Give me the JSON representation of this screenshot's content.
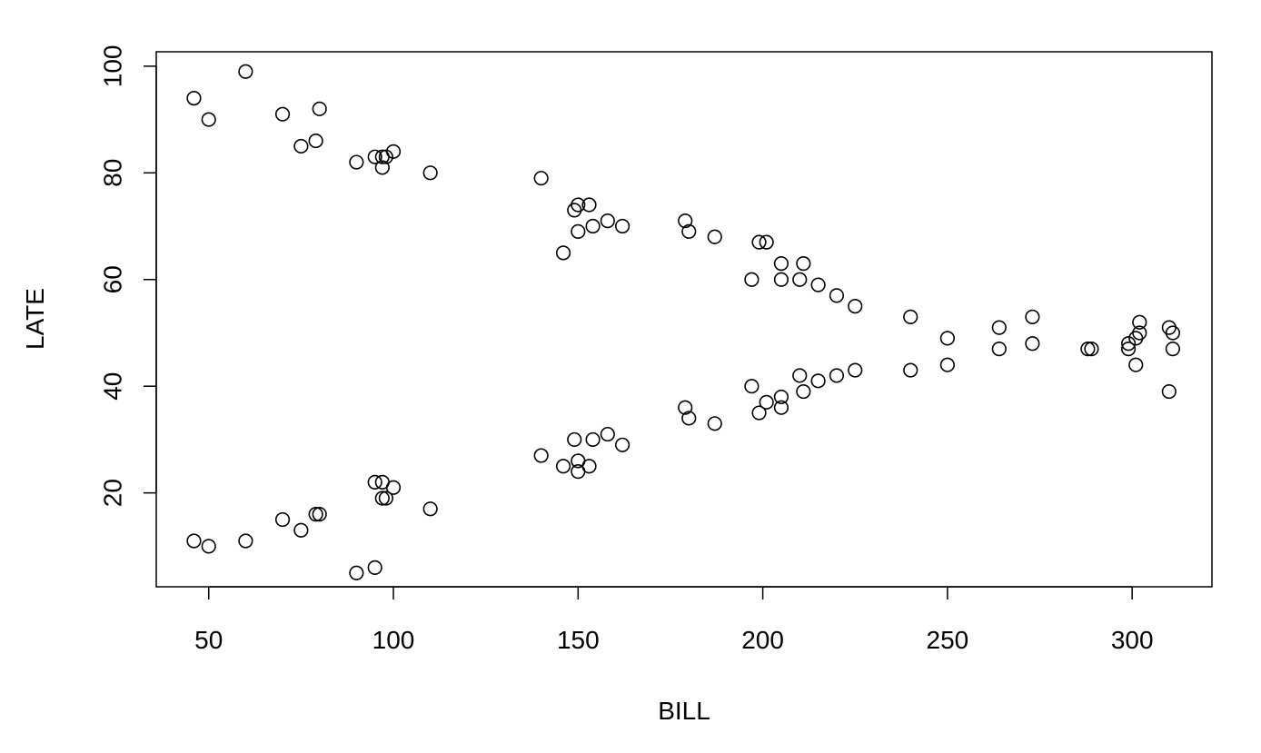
{
  "chart_data": {
    "type": "scatter",
    "title": "",
    "xlabel": "BILL",
    "ylabel": "LATE",
    "xlim": [
      35.8,
      321.6
    ],
    "ylim": [
      2.4,
      102.7
    ],
    "grid": false,
    "legend": "none",
    "x_ticks": [
      50,
      100,
      150,
      200,
      250,
      300
    ],
    "y_ticks": [
      20,
      40,
      60,
      80,
      100
    ],
    "x_tick_labels": [
      "50",
      "100",
      "150",
      "200",
      "250",
      "300"
    ],
    "y_tick_labels": [
      "20",
      "40",
      "60",
      "80",
      "100"
    ],
    "colors": {
      "point_stroke": "#000000",
      "axis": "#000000",
      "background": "#ffffff"
    },
    "series": [
      {
        "marker": "open-circle",
        "points": [
          [
            46,
            94
          ],
          [
            50,
            90
          ],
          [
            60,
            99
          ],
          [
            70,
            91
          ],
          [
            75,
            85
          ],
          [
            79,
            86
          ],
          [
            80,
            92
          ],
          [
            90,
            82
          ],
          [
            95,
            83
          ],
          [
            97,
            81
          ],
          [
            97,
            83
          ],
          [
            98,
            83
          ],
          [
            100,
            84
          ],
          [
            110,
            80
          ],
          [
            140,
            79
          ],
          [
            146,
            65
          ],
          [
            149,
            73
          ],
          [
            150,
            74
          ],
          [
            150,
            69
          ],
          [
            153,
            74
          ],
          [
            154,
            70
          ],
          [
            158,
            71
          ],
          [
            162,
            70
          ],
          [
            179,
            71
          ],
          [
            180,
            69
          ],
          [
            187,
            68
          ],
          [
            197,
            60
          ],
          [
            199,
            67
          ],
          [
            201,
            67
          ],
          [
            205,
            63
          ],
          [
            205,
            60
          ],
          [
            210,
            60
          ],
          [
            211,
            63
          ],
          [
            215,
            59
          ],
          [
            220,
            57
          ],
          [
            225,
            55
          ],
          [
            240,
            53
          ],
          [
            250,
            49
          ],
          [
            264,
            51
          ],
          [
            264,
            47
          ],
          [
            273,
            53
          ],
          [
            273,
            48
          ],
          [
            288,
            47
          ],
          [
            289,
            47
          ],
          [
            299,
            48
          ],
          [
            299,
            47
          ],
          [
            301,
            49
          ],
          [
            301,
            44
          ],
          [
            302,
            52
          ],
          [
            302,
            50
          ],
          [
            310,
            51
          ],
          [
            310,
            39
          ],
          [
            311,
            50
          ],
          [
            311,
            47
          ],
          [
            46,
            11
          ],
          [
            50,
            10
          ],
          [
            60,
            11
          ],
          [
            70,
            15
          ],
          [
            75,
            13
          ],
          [
            79,
            16
          ],
          [
            80,
            16
          ],
          [
            90,
            5
          ],
          [
            95,
            6
          ],
          [
            95,
            22
          ],
          [
            97,
            22
          ],
          [
            97,
            19
          ],
          [
            98,
            19
          ],
          [
            100,
            21
          ],
          [
            110,
            17
          ],
          [
            140,
            27
          ],
          [
            146,
            25
          ],
          [
            149,
            30
          ],
          [
            150,
            26
          ],
          [
            150,
            24
          ],
          [
            153,
            25
          ],
          [
            154,
            30
          ],
          [
            158,
            31
          ],
          [
            162,
            29
          ],
          [
            179,
            36
          ],
          [
            180,
            34
          ],
          [
            187,
            33
          ],
          [
            197,
            40
          ],
          [
            199,
            35
          ],
          [
            201,
            37
          ],
          [
            205,
            38
          ],
          [
            205,
            36
          ],
          [
            210,
            42
          ],
          [
            211,
            39
          ],
          [
            215,
            41
          ],
          [
            220,
            42
          ],
          [
            225,
            43
          ],
          [
            240,
            43
          ],
          [
            250,
            44
          ]
        ]
      }
    ]
  }
}
